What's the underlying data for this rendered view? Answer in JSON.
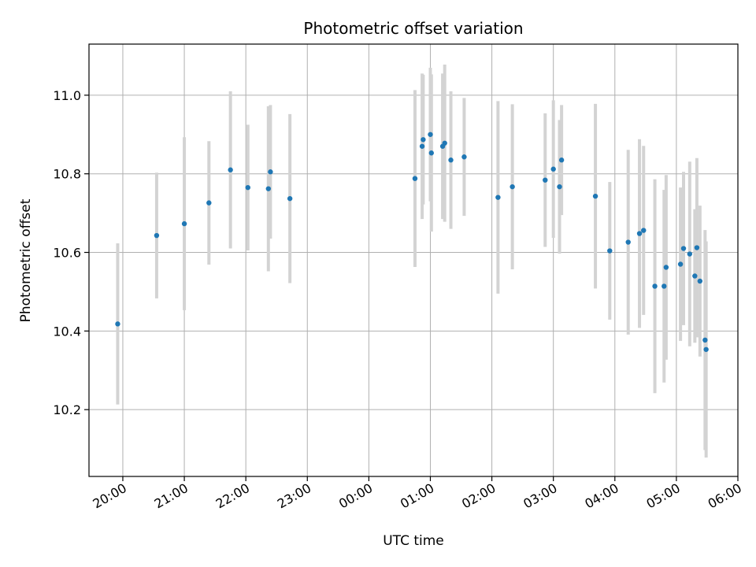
{
  "chart_data": {
    "type": "scatter",
    "title": "Photometric offset variation",
    "xlabel": "UTC time",
    "ylabel": "Photometric offset",
    "xlim": [
      "19:27",
      "06:00"
    ],
    "ylim": [
      10.03,
      11.13
    ],
    "x_ticks": [
      "20:00",
      "21:00",
      "22:00",
      "23:00",
      "00:00",
      "01:00",
      "02:00",
      "03:00",
      "04:00",
      "05:00",
      "06:00"
    ],
    "y_ticks": [
      10.2,
      10.4,
      10.6,
      10.8,
      11.0
    ],
    "y_tick_labels": [
      "10.2",
      "10.4",
      "10.6",
      "10.8",
      "11.0"
    ],
    "grid": true,
    "colors": {
      "points": "#1f77b4",
      "errorbars": "#d3d3d3",
      "grid": "#b0b0b0"
    },
    "points": [
      {
        "x": "19:55",
        "y": 10.418,
        "yerr": 0.205
      },
      {
        "x": "20:33",
        "y": 10.643,
        "yerr": 0.16
      },
      {
        "x": "21:00",
        "y": 10.673,
        "yerr": 0.22
      },
      {
        "x": "21:24",
        "y": 10.726,
        "yerr": 0.157
      },
      {
        "x": "21:45",
        "y": 10.81,
        "yerr": 0.2
      },
      {
        "x": "22:02",
        "y": 10.765,
        "yerr": 0.16
      },
      {
        "x": "22:22",
        "y": 10.762,
        "yerr": 0.21
      },
      {
        "x": "22:24",
        "y": 10.805,
        "yerr": 0.17
      },
      {
        "x": "22:43",
        "y": 10.737,
        "yerr": 0.215
      },
      {
        "x": "00:45",
        "y": 10.788,
        "yerr": 0.225
      },
      {
        "x": "00:52",
        "y": 10.87,
        "yerr": 0.185
      },
      {
        "x": "00:53",
        "y": 10.887,
        "yerr": 0.165
      },
      {
        "x": "01:00",
        "y": 10.9,
        "yerr": 0.17
      },
      {
        "x": "01:01",
        "y": 10.853,
        "yerr": 0.2
      },
      {
        "x": "01:12",
        "y": 10.87,
        "yerr": 0.185
      },
      {
        "x": "01:14",
        "y": 10.878,
        "yerr": 0.2
      },
      {
        "x": "01:20",
        "y": 10.835,
        "yerr": 0.175
      },
      {
        "x": "01:33",
        "y": 10.843,
        "yerr": 0.15
      },
      {
        "x": "02:06",
        "y": 10.74,
        "yerr": 0.245
      },
      {
        "x": "02:20",
        "y": 10.767,
        "yerr": 0.21
      },
      {
        "x": "02:52",
        "y": 10.784,
        "yerr": 0.17
      },
      {
        "x": "03:00",
        "y": 10.812,
        "yerr": 0.175
      },
      {
        "x": "03:06",
        "y": 10.767,
        "yerr": 0.17
      },
      {
        "x": "03:08",
        "y": 10.835,
        "yerr": 0.14
      },
      {
        "x": "03:41",
        "y": 10.743,
        "yerr": 0.235
      },
      {
        "x": "03:55",
        "y": 10.604,
        "yerr": 0.175
      },
      {
        "x": "04:13",
        "y": 10.626,
        "yerr": 0.235
      },
      {
        "x": "04:24",
        "y": 10.648,
        "yerr": 0.24
      },
      {
        "x": "04:28",
        "y": 10.656,
        "yerr": 0.215
      },
      {
        "x": "04:39",
        "y": 10.514,
        "yerr": 0.272
      },
      {
        "x": "04:48",
        "y": 10.514,
        "yerr": 0.245
      },
      {
        "x": "04:50",
        "y": 10.562,
        "yerr": 0.235
      },
      {
        "x": "05:04",
        "y": 10.57,
        "yerr": 0.195
      },
      {
        "x": "05:07",
        "y": 10.61,
        "yerr": 0.195
      },
      {
        "x": "05:13",
        "y": 10.596,
        "yerr": 0.235
      },
      {
        "x": "05:18",
        "y": 10.54,
        "yerr": 0.17
      },
      {
        "x": "05:20",
        "y": 10.612,
        "yerr": 0.228
      },
      {
        "x": "05:23",
        "y": 10.527,
        "yerr": 0.192
      },
      {
        "x": "05:28",
        "y": 10.377,
        "yerr": 0.28
      },
      {
        "x": "05:29",
        "y": 10.353,
        "yerr": 0.275
      }
    ]
  }
}
